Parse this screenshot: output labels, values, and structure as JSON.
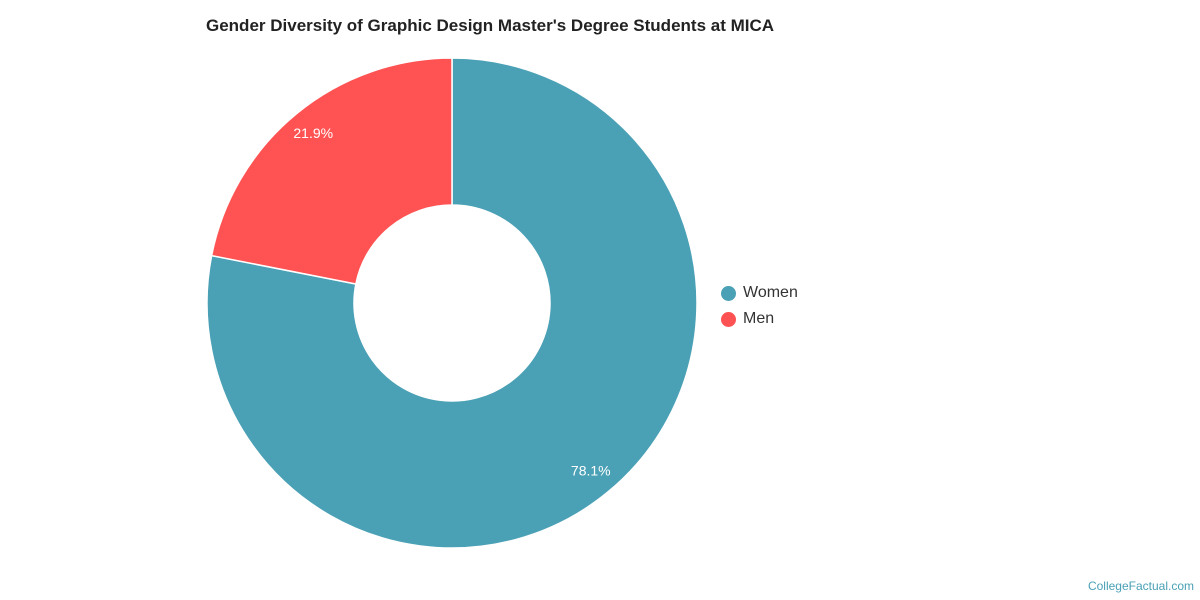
{
  "chart_data": {
    "type": "pie",
    "title": "Gender Diversity of Graphic Design Master's Degree Students at MICA",
    "donut": true,
    "slices": [
      {
        "label": "Women",
        "value": 78.1,
        "display": "78.1%",
        "color": "#4aa0b5"
      },
      {
        "label": "Men",
        "value": 21.9,
        "display": "21.9%",
        "color": "#ff5252"
      }
    ],
    "legend_position": "right"
  },
  "legend": {
    "items": [
      {
        "label": "Women",
        "color": "#4aa0b5"
      },
      {
        "label": "Men",
        "color": "#ff5252"
      }
    ]
  },
  "credit": {
    "text": "CollegeFactual.com"
  }
}
